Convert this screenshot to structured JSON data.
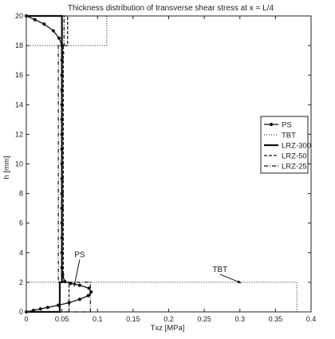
{
  "chart_data": {
    "type": "line",
    "title": "Thickness distribution of transverse shear stress at x = L/4",
    "xlabel": "Txz [MPa]",
    "ylabel": "h [mm]",
    "xlim": [
      0,
      0.4
    ],
    "ylim": [
      0,
      20
    ],
    "xticks": [
      "0",
      "0.05",
      "0.1",
      "0.15",
      "0.2",
      "0.25",
      "0.3",
      "0.35",
      "0.4"
    ],
    "yticks": [
      "0",
      "2",
      "4",
      "6",
      "8",
      "10",
      "12",
      "14",
      "16",
      "18",
      "20"
    ],
    "legend_position": "right",
    "grid": false,
    "series": [
      {
        "name": "PS",
        "style": "solid-dots",
        "points": [
          [
            0.0,
            0.0
          ],
          [
            0.01,
            0.1
          ],
          [
            0.02,
            0.2
          ],
          [
            0.03,
            0.3
          ],
          [
            0.045,
            0.45
          ],
          [
            0.06,
            0.62
          ],
          [
            0.075,
            0.85
          ],
          [
            0.087,
            1.1
          ],
          [
            0.091,
            1.35
          ],
          [
            0.088,
            1.6
          ],
          [
            0.075,
            1.8
          ],
          [
            0.062,
            1.92
          ],
          [
            0.054,
            2.05
          ],
          [
            0.051,
            2.5
          ],
          [
            0.05,
            3
          ],
          [
            0.05,
            4
          ],
          [
            0.05,
            5
          ],
          [
            0.05,
            6
          ],
          [
            0.05,
            7
          ],
          [
            0.05,
            8
          ],
          [
            0.05,
            9
          ],
          [
            0.05,
            10
          ],
          [
            0.05,
            11
          ],
          [
            0.05,
            12
          ],
          [
            0.05,
            13
          ],
          [
            0.05,
            14
          ],
          [
            0.05,
            15
          ],
          [
            0.05,
            16
          ],
          [
            0.05,
            17
          ],
          [
            0.051,
            17.5
          ],
          [
            0.05,
            18.0
          ],
          [
            0.046,
            18.5
          ],
          [
            0.038,
            19.0
          ],
          [
            0.025,
            19.45
          ],
          [
            0.012,
            19.75
          ],
          [
            0.0,
            20.0
          ]
        ]
      },
      {
        "name": "TBT",
        "style": "dotted",
        "points": [
          [
            0.0,
            0.0
          ],
          [
            0.38,
            0.0
          ],
          [
            0.38,
            2.0
          ],
          [
            0.0,
            2.0
          ],
          [
            0.0,
            18.0
          ],
          [
            0.113,
            18.0
          ],
          [
            0.113,
            20.0
          ],
          [
            0.0,
            20.0
          ]
        ]
      },
      {
        "name": "LRZ-300",
        "style": "solid",
        "points": [
          [
            0.0,
            0.0
          ],
          [
            0.047,
            0.0
          ],
          [
            0.047,
            2.0
          ],
          [
            0.05,
            2.0
          ],
          [
            0.05,
            18.0
          ],
          [
            0.05,
            20.0
          ],
          [
            0.0,
            20.0
          ]
        ]
      },
      {
        "name": "LRZ-50",
        "style": "dashed",
        "points": [
          [
            0.0,
            0.0
          ],
          [
            0.06,
            0.0
          ],
          [
            0.06,
            2.0
          ],
          [
            0.052,
            2.0
          ],
          [
            0.052,
            18.0
          ],
          [
            0.058,
            18.0
          ],
          [
            0.058,
            20.0
          ],
          [
            0.0,
            20.0
          ]
        ]
      },
      {
        "name": "LRZ-25",
        "style": "dashdot",
        "points": [
          [
            0.0,
            0.0
          ],
          [
            0.09,
            0.0
          ],
          [
            0.09,
            2.0
          ],
          [
            0.045,
            2.0
          ],
          [
            0.045,
            18.0
          ],
          [
            0.053,
            18.0
          ],
          [
            0.053,
            20.0
          ],
          [
            0.0,
            20.0
          ]
        ]
      }
    ],
    "annotations": [
      {
        "text": "PS",
        "x": 0.075,
        "y": 3.7,
        "arrow_to": [
          0.067,
          1.7
        ]
      },
      {
        "text": "TBT",
        "x": 0.272,
        "y": 2.7,
        "arrow_to": [
          0.302,
          1.95
        ]
      }
    ]
  }
}
